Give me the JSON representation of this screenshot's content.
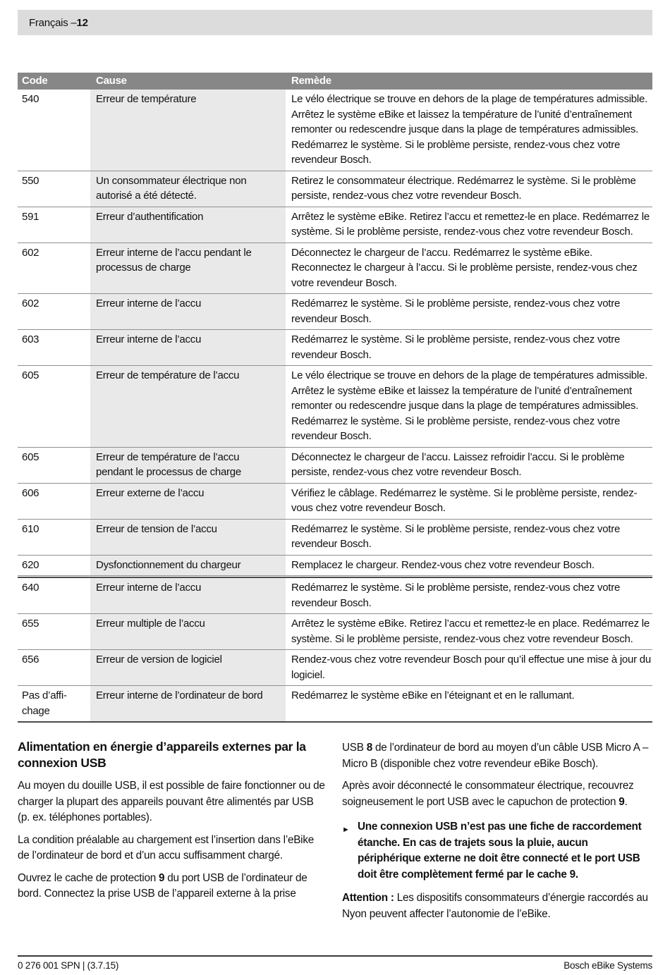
{
  "header": {
    "label": "Français – ",
    "page": "12"
  },
  "colors": {
    "page_bar_bg": "#dcdcdc",
    "table_header_bg": "#878787",
    "cause_bg": "#e9e9e9",
    "row_border": "#8f8f8f",
    "strong_border": "#4a4a4a"
  },
  "table": {
    "columns": [
      "Code",
      "Cause",
      "Remède"
    ],
    "rows": [
      {
        "code": "540",
        "cause": "Erreur de température",
        "remedy": "Le vélo électrique se trouve en dehors de la plage de températures admissible. Arrêtez le système eBike et laissez la température de l’unité d’entraînement remonter ou redescendre jusque dans la plage de températures admissibles. Redémarrez le système. Si le problème persiste, rendez-vous chez votre revendeur Bosch."
      },
      {
        "code": "550",
        "cause": "Un consommateur électrique non autorisé a été détecté.",
        "remedy": "Retirez le consommateur électrique. Redémarrez le système. Si le problème persiste, rendez-vous chez votre revendeur Bosch."
      },
      {
        "code": "591",
        "cause": "Erreur d’authentification",
        "remedy": "Arrêtez le système eBike. Retirez l’accu et remettez-le en place. Redémarrez le système. Si le problème persiste, rendez-vous chez votre revendeur Bosch."
      },
      {
        "code": "602",
        "cause": "Erreur interne de l’accu pendant le processus de charge",
        "remedy": "Déconnectez le chargeur de l’accu. Redémarrez le système eBike. Reconnectez le chargeur à l’accu. Si le problème persiste, rendez-vous chez votre revendeur Bosch."
      },
      {
        "code": "602",
        "cause": "Erreur interne de l’accu",
        "remedy": "Redémarrez le système. Si le problème persiste, rendez-vous chez votre revendeur Bosch."
      },
      {
        "code": "603",
        "cause": "Erreur interne de l’accu",
        "remedy": "Redémarrez le système. Si le problème persiste, rendez-vous chez votre revendeur Bosch."
      },
      {
        "code": "605",
        "cause": "Erreur de température de l’accu",
        "remedy": "Le vélo électrique se trouve en dehors de la plage de températures admissible. Arrêtez le système eBike et laissez la température de l’unité d’entraînement remonter ou redescendre jusque dans la plage de températures admissibles. Redémarrez le système. Si le problème persiste, rendez-vous chez votre revendeur Bosch."
      },
      {
        "code": "605",
        "cause": "Erreur de température de l’accu pendant le processus de charge",
        "remedy": "Déconnectez le chargeur de l’accu. Laissez refroidir l’accu. Si le problème persiste, rendez-vous chez votre revendeur Bosch."
      },
      {
        "code": "606",
        "cause": "Erreur externe de l’accu",
        "remedy": "Vérifiez le câblage. Redémarrez le système. Si le problème persiste, rendez-vous chez votre revendeur Bosch."
      },
      {
        "code": "610",
        "cause": "Erreur de tension de l’accu",
        "remedy": "Redémarrez le système. Si le problème persiste, rendez-vous chez votre revendeur Bosch."
      },
      {
        "code": "620",
        "cause": "Dysfonctionnement du chargeur",
        "remedy": "Remplacez le chargeur. Rendez-vous chez votre revendeur Bosch."
      },
      {
        "code": "640",
        "cause": "Erreur interne de l’accu",
        "remedy": "Redémarrez le système. Si le problème persiste, rendez-vous chez votre revendeur Bosch.",
        "section_break": true
      },
      {
        "code": "655",
        "cause": "Erreur multiple de l’accu",
        "remedy": "Arrêtez le système eBike. Retirez l’accu et remettez-le en place. Redémarrez le système. Si le problème persiste, rendez-vous chez votre revendeur Bosch."
      },
      {
        "code": "656",
        "cause": "Erreur de version de logiciel",
        "remedy": "Rendez-vous chez votre revendeur Bosch pour qu’il effectue une mise à jour du logiciel."
      },
      {
        "code": "Pas d’affi-chage",
        "cause": "Erreur interne de l’ordinateur de bord",
        "remedy": "Redémarrez le système eBike en l’éteignant et en le rallumant."
      }
    ]
  },
  "section": {
    "title": "Alimentation en énergie d’appareils externes par la connexion USB",
    "bullet_marker": "►",
    "left": [
      {
        "type": "p",
        "segments": [
          {
            "text": "Au moyen du douille USB, il est possible de faire fonctionner ou de charger la plupart des appareils pouvant être alimentés par USB (p. ex. téléphones portables)."
          }
        ]
      },
      {
        "type": "p",
        "segments": [
          {
            "text": "La condition préalable au chargement est l’insertion dans l’eBike de l’ordinateur de bord et d’un accu suffisamment chargé."
          }
        ]
      },
      {
        "type": "p",
        "segments": [
          {
            "text": "Ouvrez le cache de protection "
          },
          {
            "text": "9",
            "bold": true
          },
          {
            "text": " du port USB de l’ordinateur de bord. Connectez la prise USB de l’appareil externe à la prise"
          }
        ]
      }
    ],
    "right": [
      {
        "type": "p",
        "segments": [
          {
            "text": "USB "
          },
          {
            "text": "8",
            "bold": true
          },
          {
            "text": " de l’ordinateur de bord au moyen d’un câble USB Micro A – Micro B (disponible chez votre revendeur eBike Bosch)."
          }
        ]
      },
      {
        "type": "p",
        "segments": [
          {
            "text": "Après avoir déconnecté le consommateur électrique, recouvrez soigneusement le port USB avec le capuchon de protection "
          },
          {
            "text": "9",
            "bold": true
          },
          {
            "text": "."
          }
        ]
      },
      {
        "type": "bullet",
        "segments": [
          {
            "text": "Une connexion USB n’est pas une fiche de raccordement étanche. En cas de trajets sous la pluie, aucun périphérique externe ne doit être connecté et le port USB doit être complètement fermé par le cache 9.",
            "bold": true
          }
        ]
      },
      {
        "type": "p",
        "segments": [
          {
            "text": "Attention : ",
            "bold": true
          },
          {
            "text": "Les dispositifs consommateurs d’énergie raccordés au Nyon peuvent affecter l’autonomie de l’eBike."
          }
        ]
      }
    ]
  },
  "footer": {
    "left": "0 276 001 SPN | (3.7.15)",
    "right": "Bosch eBike Systems"
  }
}
